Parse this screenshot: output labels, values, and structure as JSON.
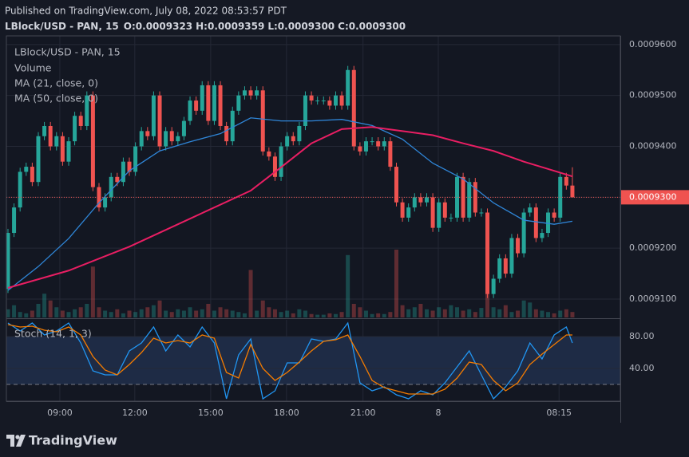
{
  "header": {
    "published": "Published on TradingView.com, July 08, 2022 08:53:57 PDT",
    "symbol": "LBlock/USD - PAN, 15",
    "ohlc": [
      {
        "key": "O:",
        "value": "0.0009323"
      },
      {
        "key": "H:",
        "value": "0.0009359"
      },
      {
        "key": "L:",
        "value": "0.0009300"
      },
      {
        "key": "C:",
        "value": "0.0009300"
      }
    ]
  },
  "chart_data": [
    {
      "type": "candlestick",
      "legend_title": "LBlock/USD - PAN, 15",
      "up_color": "#26a69a",
      "down_color": "#ef5350",
      "xlim": [
        -0.26,
        100.9
      ],
      "xticks": [
        {
          "value": 8.55,
          "label": "09:00"
        },
        {
          "value": 20.9,
          "label": "12:00"
        },
        {
          "value": 33.4,
          "label": "15:00"
        },
        {
          "value": 45.9,
          "label": "18:00"
        },
        {
          "value": 58.5,
          "label": "21:00"
        },
        {
          "value": 70.9,
          "label": "8"
        },
        {
          "value": 90.8,
          "label": "08:15"
        }
      ],
      "ylim": [
        0.0009064,
        0.0009617
      ],
      "yticks": [
        {
          "value": 0.00091,
          "label": "0.0009100"
        },
        {
          "value": 0.00092,
          "label": "0.0009200"
        },
        {
          "value": 0.00093,
          "label": "0.0009300"
        },
        {
          "value": 0.00094,
          "label": "0.0009400"
        },
        {
          "value": 0.00095,
          "label": "0.0009500"
        },
        {
          "value": 0.00096,
          "label": "0.0009600"
        }
      ],
      "grid": true,
      "last_price": {
        "value": 0.00093,
        "label": "0.0009300"
      },
      "open": [
        0.000912,
        0.000923,
        0.000928,
        0.000935,
        0.000936,
        0.000933,
        0.000942,
        0.000944,
        0.00094,
        0.000942,
        0.000937,
        0.000941,
        0.000946,
        0.000944,
        0.00095,
        0.000932,
        0.000928,
        0.00093,
        0.000934,
        0.000933,
        0.000937,
        0.000935,
        0.00094,
        0.000943,
        0.000942,
        0.00095,
        0.00094,
        0.000943,
        0.000941,
        0.000942,
        0.000945,
        0.000949,
        0.000947,
        0.000952,
        0.000945,
        0.000952,
        0.000944,
        0.000941,
        0.000947,
        0.00095,
        0.000951,
        0.00095,
        0.000951,
        0.000939,
        0.000938,
        0.000934,
        0.00094,
        0.000942,
        0.000941,
        0.000944,
        0.00095,
        0.000949,
        0.000949,
        0.000949,
        0.000948,
        0.00095,
        0.000948,
        0.000955,
        0.00094,
        0.000939,
        0.000941,
        0.000941,
        0.00094,
        0.000941,
        0.000936,
        0.000929,
        0.000926,
        0.000928,
        0.00093,
        0.000929,
        0.00093,
        0.000924,
        0.000929,
        0.000926,
        0.000926,
        0.000934,
        0.000926,
        0.000933,
        0.000927,
        0.000927,
        0.000911,
        0.000914,
        0.000918,
        0.000915,
        0.000922,
        0.000919,
        0.000927,
        0.000928,
        0.000922,
        0.000923,
        0.000927,
        0.000926,
        0.000934,
        0.0009323
      ],
      "high": [
        0.0009238,
        0.0009288,
        0.0009358,
        0.0009368,
        0.0009368,
        0.0009428,
        0.0009448,
        0.0009448,
        0.0009428,
        0.0009428,
        0.0009418,
        0.0009468,
        0.0009468,
        0.0009508,
        0.0009508,
        0.0009328,
        0.0009308,
        0.0009348,
        0.0009348,
        0.0009378,
        0.0009378,
        0.0009408,
        0.0009438,
        0.0009438,
        0.0009508,
        0.0009508,
        0.0009438,
        0.0009438,
        0.0009428,
        0.0009458,
        0.0009498,
        0.0009498,
        0.0009528,
        0.0009528,
        0.0009528,
        0.0009528,
        0.0009448,
        0.0009478,
        0.0009508,
        0.0009518,
        0.0009518,
        0.0009518,
        0.0009518,
        0.0009398,
        0.0009388,
        0.0009408,
        0.0009428,
        0.0009428,
        0.0009448,
        0.0009508,
        0.0009508,
        0.0009498,
        0.0009498,
        0.0009498,
        0.0009508,
        0.0009508,
        0.0009558,
        0.0009558,
        0.0009408,
        0.0009418,
        0.0009418,
        0.0009418,
        0.0009418,
        0.0009418,
        0.0009368,
        0.0009298,
        0.0009288,
        0.0009308,
        0.0009308,
        0.0009308,
        0.0009308,
        0.0009298,
        0.0009298,
        0.0009268,
        0.0009348,
        0.0009348,
        0.0009338,
        0.0009338,
        0.0009278,
        0.0009278,
        0.0009148,
        0.0009188,
        0.0009188,
        0.0009228,
        0.0009228,
        0.0009278,
        0.0009288,
        0.0009288,
        0.0009238,
        0.0009278,
        0.0009278,
        0.0009348,
        0.0009348,
        0.0009359
      ],
      "low": [
        0.0009112,
        0.0009222,
        0.0009272,
        0.0009342,
        0.0009322,
        0.0009322,
        0.0009412,
        0.0009392,
        0.0009392,
        0.0009362,
        0.0009362,
        0.0009402,
        0.0009432,
        0.0009432,
        0.0009312,
        0.0009272,
        0.0009272,
        0.0009292,
        0.0009322,
        0.0009322,
        0.0009342,
        0.0009342,
        0.0009392,
        0.0009412,
        0.0009412,
        0.0009392,
        0.0009392,
        0.0009402,
        0.0009402,
        0.0009412,
        0.0009442,
        0.0009462,
        0.0009462,
        0.0009442,
        0.0009442,
        0.0009432,
        0.0009402,
        0.0009402,
        0.0009462,
        0.0009492,
        0.0009492,
        0.0009492,
        0.0009382,
        0.0009372,
        0.0009332,
        0.0009332,
        0.0009392,
        0.0009402,
        0.0009402,
        0.0009432,
        0.0009482,
        0.0009482,
        0.0009482,
        0.0009472,
        0.0009472,
        0.0009472,
        0.0009472,
        0.0009392,
        0.0009382,
        0.0009382,
        0.0009402,
        0.0009392,
        0.0009392,
        0.0009352,
        0.0009282,
        0.0009252,
        0.0009252,
        0.0009272,
        0.0009282,
        0.0009282,
        0.0009232,
        0.0009232,
        0.0009252,
        0.0009252,
        0.0009252,
        0.0009252,
        0.0009252,
        0.0009262,
        0.0009262,
        0.0009102,
        0.0009102,
        0.0009132,
        0.0009142,
        0.0009142,
        0.0009182,
        0.0009182,
        0.0009262,
        0.0009212,
        0.0009212,
        0.0009222,
        0.0009252,
        0.0009252,
        0.0009315,
        0.00093
      ],
      "close": [
        0.000923,
        0.000928,
        0.000935,
        0.000936,
        0.000933,
        0.000942,
        0.000944,
        0.00094,
        0.000942,
        0.000937,
        0.000941,
        0.000946,
        0.000944,
        0.00095,
        0.000932,
        0.000928,
        0.00093,
        0.000934,
        0.000933,
        0.000937,
        0.000935,
        0.00094,
        0.000943,
        0.000942,
        0.00095,
        0.00094,
        0.000943,
        0.000941,
        0.000942,
        0.000945,
        0.000949,
        0.000947,
        0.000952,
        0.000945,
        0.000952,
        0.000944,
        0.000941,
        0.000947,
        0.00095,
        0.000951,
        0.00095,
        0.000951,
        0.000939,
        0.000938,
        0.000934,
        0.00094,
        0.000942,
        0.000941,
        0.000944,
        0.00095,
        0.000949,
        0.000949,
        0.000949,
        0.000948,
        0.00095,
        0.000948,
        0.000955,
        0.00094,
        0.000939,
        0.000941,
        0.000941,
        0.00094,
        0.000941,
        0.000936,
        0.000929,
        0.000926,
        0.000928,
        0.00093,
        0.000929,
        0.00093,
        0.000924,
        0.000929,
        0.000926,
        0.000926,
        0.000934,
        0.000926,
        0.000933,
        0.000927,
        0.000927,
        0.000911,
        0.000914,
        0.000918,
        0.000915,
        0.000922,
        0.000919,
        0.000927,
        0.000928,
        0.000922,
        0.000923,
        0.000927,
        0.000926,
        0.000934,
        0.0009323,
        0.00093
      ],
      "volume": {
        "name": "Volume",
        "values": [
          12,
          18,
          8,
          6,
          10,
          20,
          35,
          25,
          15,
          10,
          8,
          12,
          15,
          20,
          75,
          15,
          10,
          8,
          12,
          6,
          10,
          8,
          12,
          15,
          18,
          25,
          10,
          8,
          12,
          10,
          15,
          10,
          12,
          20,
          10,
          15,
          12,
          10,
          8,
          6,
          70,
          10,
          25,
          15,
          12,
          8,
          10,
          6,
          12,
          10,
          5,
          4,
          4,
          6,
          5,
          8,
          92,
          20,
          15,
          10,
          5,
          6,
          5,
          8,
          100,
          18,
          12,
          15,
          20,
          12,
          10,
          15,
          12,
          18,
          15,
          10,
          12,
          8,
          14,
          35,
          15,
          12,
          18,
          8,
          10,
          25,
          22,
          12,
          10,
          8,
          6,
          10,
          12,
          8
        ]
      },
      "overlays": [
        {
          "name": "MA (21, close, 0)",
          "color": "#2f86d8",
          "x": [
            0,
            5,
            10,
            15,
            20,
            25,
            30,
            35,
            40,
            45,
            50,
            55,
            60,
            65,
            70,
            75,
            80,
            85,
            90,
            93
          ],
          "values": [
            0.0009117,
            0.0009164,
            0.0009219,
            0.0009289,
            0.0009352,
            0.0009391,
            0.0009409,
            0.0009425,
            0.0009456,
            0.000945,
            0.000945,
            0.0009453,
            0.0009441,
            0.0009414,
            0.0009367,
            0.0009336,
            0.0009289,
            0.0009255,
            0.0009247,
            0.0009253
          ]
        },
        {
          "name": "MA (50, close, 0)",
          "color": "#e91e63",
          "x": [
            0,
            10,
            20,
            30,
            40,
            45,
            50,
            55,
            60,
            65,
            70,
            75,
            80,
            85,
            90,
            93
          ],
          "values": [
            0.0009122,
            0.0009156,
            0.0009203,
            0.0009258,
            0.0009313,
            0.0009359,
            0.0009406,
            0.0009434,
            0.0009438,
            0.000943,
            0.0009422,
            0.0009406,
            0.0009391,
            0.000937,
            0.0009352,
            0.0009341
          ]
        }
      ]
    },
    {
      "type": "line",
      "legend_title": "Stoch (14, 1, 3)",
      "ylim": [
        -1,
        101
      ],
      "yticks": [
        {
          "value": 40,
          "label": "40.00"
        },
        {
          "value": 80,
          "label": "80.00"
        }
      ],
      "band_lines": [
        20,
        80
      ],
      "band_color": "#1e2b45",
      "x": [
        0,
        2,
        4,
        6,
        8,
        10,
        12,
        14,
        16,
        18,
        20,
        22,
        24,
        26,
        28,
        30,
        32,
        34,
        36,
        38,
        40,
        42,
        44,
        46,
        48,
        50,
        52,
        54,
        56,
        58,
        60,
        62,
        64,
        66,
        68,
        70,
        72,
        74,
        76,
        78,
        80,
        82,
        84,
        86,
        88,
        90,
        92,
        93
      ],
      "series": [
        {
          "color": "#2196f3",
          "values": [
            97,
            87,
            97,
            82,
            87,
            97,
            72,
            37,
            32,
            32,
            62,
            72,
            92,
            62,
            82,
            67,
            92,
            72,
            2,
            57,
            77,
            2,
            12,
            47,
            47,
            77,
            74,
            77,
            97,
            22,
            12,
            17,
            7,
            2,
            12,
            7,
            22,
            42,
            62,
            32,
            2,
            17,
            37,
            72,
            52,
            82,
            92,
            72
          ]
        },
        {
          "color": "#f57c00",
          "values": [
            95,
            92,
            93,
            88,
            86,
            92,
            82,
            55,
            38,
            32,
            45,
            60,
            78,
            72,
            75,
            72,
            82,
            78,
            35,
            28,
            70,
            40,
            25,
            35,
            48,
            62,
            74,
            76,
            82,
            55,
            25,
            16,
            12,
            8,
            8,
            8,
            14,
            28,
            48,
            45,
            25,
            12,
            22,
            45,
            58,
            70,
            82,
            82
          ]
        }
      ]
    }
  ],
  "footer": {
    "brand": "TradingView"
  }
}
